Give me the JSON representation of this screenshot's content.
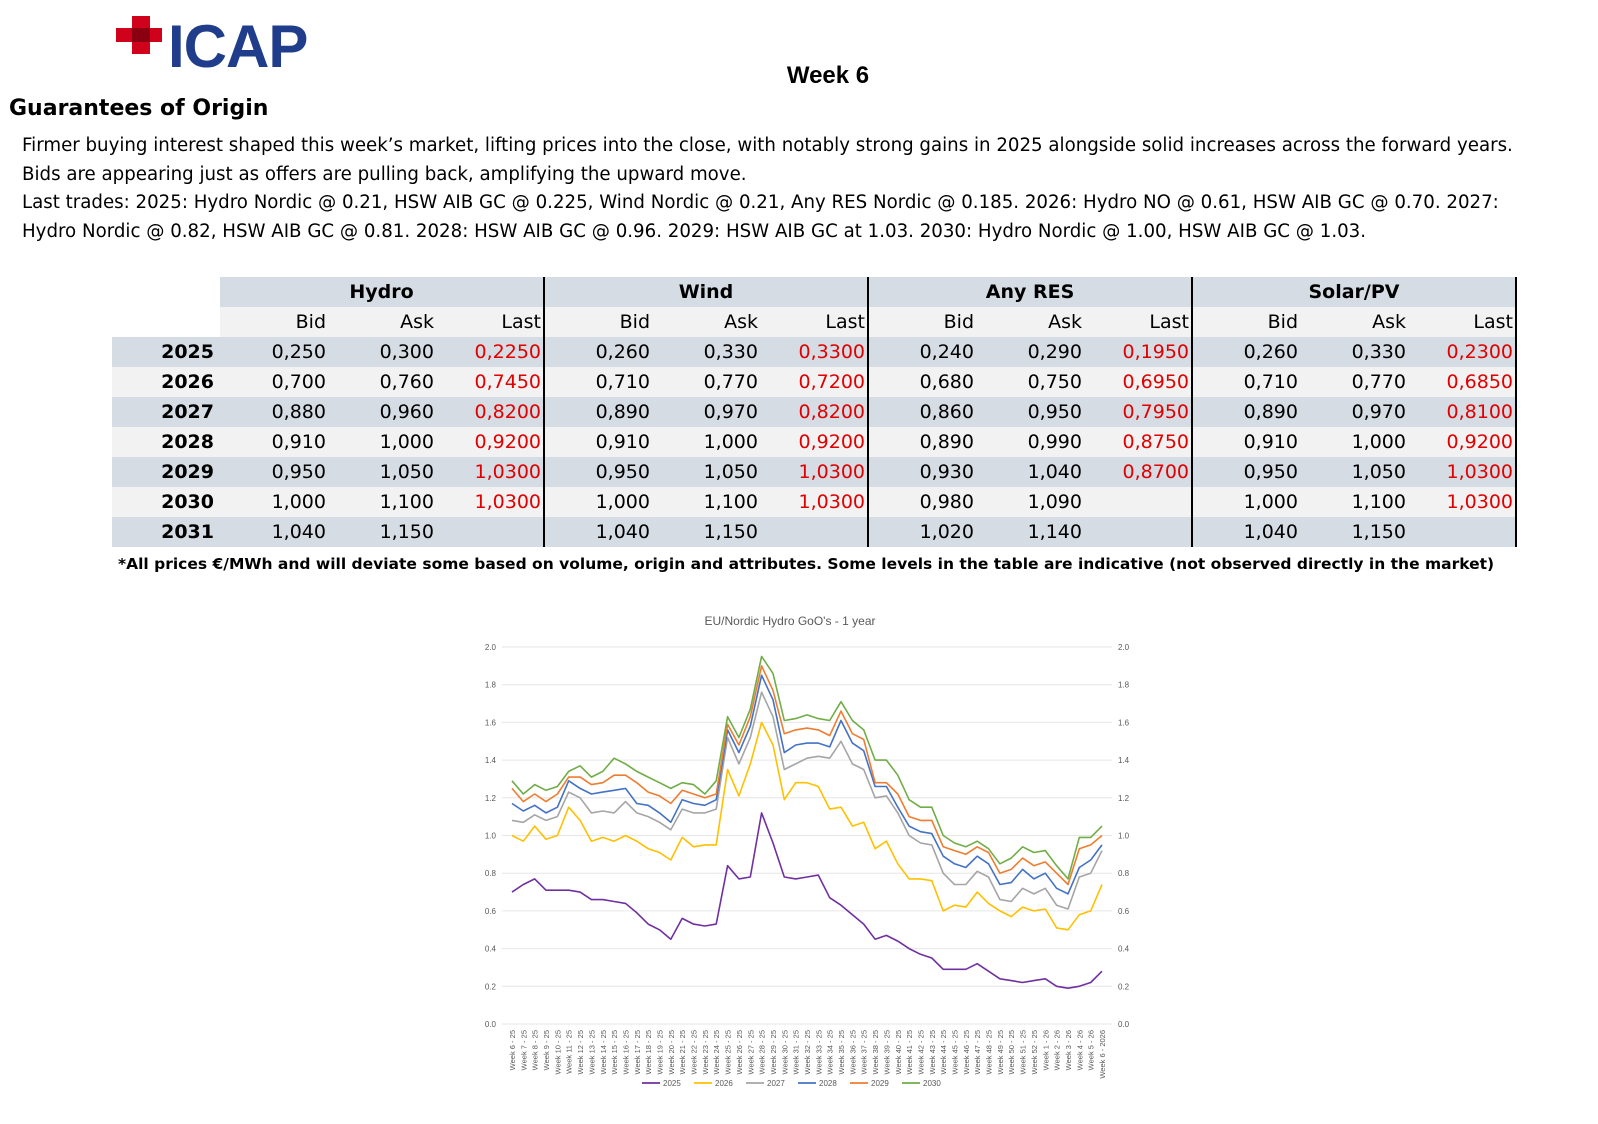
{
  "logo": {
    "text": "ICAP",
    "brand_color": "#1f3d8a",
    "accent_color": "#d0021b"
  },
  "week_title": "Week 6",
  "section_title": "Guarantees of Origin",
  "paragraph_lines": [
    "Firmer buying interest shaped this week’s market, lifting prices into the close, with notably strong gains in 2025 alongside solid increases across the forward years.",
    "Bids are appearing just as offers are pulling back, amplifying the upward move.",
    "Last trades:   2025: Hydro Nordic @ 0.21, HSW AIB GC @ 0.225, Wind Nordic @ 0.21, Any RES Nordic @ 0.185.   2026: Hydro NO @ 0.61, HSW AIB GC @ 0.70.   2027:",
    "Hydro Nordic @ 0.82, HSW AIB GC @ 0.81.   2028: HSW AIB GC @ 0.96.   2029: HSW AIB GC at 1.03.   2030: Hydro Nordic @ 1.00, HSW AIB GC @ 1.03."
  ],
  "table": {
    "groups": [
      "Hydro",
      "Wind",
      "Any RES",
      "Solar/PV"
    ],
    "columns": [
      "Bid",
      "Ask",
      "Last"
    ],
    "rows": [
      {
        "year": "2025",
        "cells": [
          "0,250",
          "0,300",
          "0,2250",
          "0,260",
          "0,330",
          "0,3300",
          "0,240",
          "0,290",
          "0,1950",
          "0,260",
          "0,330",
          "0,2300"
        ]
      },
      {
        "year": "2026",
        "cells": [
          "0,700",
          "0,760",
          "0,7450",
          "0,710",
          "0,770",
          "0,7200",
          "0,680",
          "0,750",
          "0,6950",
          "0,710",
          "0,770",
          "0,6850"
        ]
      },
      {
        "year": "2027",
        "cells": [
          "0,880",
          "0,960",
          "0,8200",
          "0,890",
          "0,970",
          "0,8200",
          "0,860",
          "0,950",
          "0,7950",
          "0,890",
          "0,970",
          "0,8100"
        ]
      },
      {
        "year": "2028",
        "cells": [
          "0,910",
          "1,000",
          "0,9200",
          "0,910",
          "1,000",
          "0,9200",
          "0,890",
          "0,990",
          "0,8750",
          "0,910",
          "1,000",
          "0,9200"
        ]
      },
      {
        "year": "2029",
        "cells": [
          "0,950",
          "1,050",
          "1,0300",
          "0,950",
          "1,050",
          "1,0300",
          "0,930",
          "1,040",
          "0,8700",
          "0,950",
          "1,050",
          "1,0300"
        ]
      },
      {
        "year": "2030",
        "cells": [
          "1,000",
          "1,100",
          "1,0300",
          "1,000",
          "1,100",
          "1,0300",
          "0,980",
          "1,090",
          "",
          "1,000",
          "1,100",
          "1,0300"
        ]
      },
      {
        "year": "2031",
        "cells": [
          "1,040",
          "1,150",
          "",
          "1,040",
          "1,150",
          "",
          "1,020",
          "1,140",
          "",
          "1,040",
          "1,150",
          ""
        ]
      }
    ],
    "last_color": "#e00000",
    "band_color": "#d5dce4"
  },
  "note": "*All prices €/MWh and will deviate some based on volume, origin and attributes. Some levels in the table are indicative (not observed directly in the market)",
  "chart_data": {
    "type": "line",
    "title": "EU/Nordic Hydro GoO's - 1 year",
    "ylim": [
      0,
      2.0
    ],
    "yticks": [
      "0.0",
      "0.2",
      "0.4",
      "0.6",
      "0.8",
      "1.0",
      "1.2",
      "1.4",
      "1.6",
      "1.8",
      "2.0"
    ],
    "x": [
      "Week 6 - 25",
      "Week 7 - 25",
      "Week 8 - 25",
      "Week 9 - 25",
      "Week 10 - 25",
      "Week 11 - 25",
      "Week 12 - 25",
      "Week 13 - 25",
      "Week 14 - 25",
      "Week 15 - 25",
      "Week 16 - 25",
      "Week 17 - 25",
      "Week 18 - 25",
      "Week 19 - 25",
      "Week 20 - 25",
      "Week 21 - 25",
      "Week 22 - 25",
      "Week 23 - 25",
      "Week 24 - 25",
      "Week 25 - 25",
      "Week 26 - 25",
      "Week 27 - 25",
      "Week 28 - 25",
      "Week 29 - 25",
      "Week 30 - 25",
      "Week 31 - 25",
      "Week 32 - 25",
      "Week 33 - 25",
      "Week 34 - 25",
      "Week 35 - 25",
      "Week 36 - 25",
      "Week 37 - 25",
      "Week 38 - 25",
      "Week 39 - 25",
      "Week 40 - 25",
      "Week 41 - 25",
      "Week 42 - 25",
      "Week 43 - 25",
      "Week 44 - 25",
      "Week 45 - 25",
      "Week 46 - 25",
      "Week 47 - 25",
      "Week 48 - 25",
      "Week 49 - 25",
      "Week 50 - 25",
      "Week 51 - 25",
      "Week 52 - 25",
      "Week 1 - 26",
      "Week 2 - 26",
      "Week 3 - 26",
      "Week 4 - 26",
      "Week 5 - 26",
      "Week 6 - 2026"
    ],
    "series": [
      {
        "name": "2025",
        "color": "#7030a0",
        "values": [
          0.7,
          0.74,
          0.77,
          0.71,
          0.71,
          0.71,
          0.7,
          0.66,
          0.66,
          0.65,
          0.64,
          0.59,
          0.53,
          0.5,
          0.45,
          0.56,
          0.53,
          0.52,
          0.53,
          0.84,
          0.77,
          0.78,
          1.12,
          0.96,
          0.78,
          0.77,
          0.78,
          0.79,
          0.67,
          0.63,
          0.58,
          0.53,
          0.45,
          0.47,
          0.44,
          0.4,
          0.37,
          0.35,
          0.29,
          0.29,
          0.29,
          0.32,
          0.28,
          0.24,
          0.23,
          0.22,
          0.23,
          0.24,
          0.2,
          0.19,
          0.2,
          0.22,
          0.28
        ]
      },
      {
        "name": "2026",
        "color": "#ffc000",
        "values": [
          1.0,
          0.97,
          1.05,
          0.98,
          1.0,
          1.15,
          1.08,
          0.97,
          0.99,
          0.97,
          1.0,
          0.97,
          0.93,
          0.91,
          0.87,
          0.99,
          0.94,
          0.95,
          0.95,
          1.35,
          1.21,
          1.38,
          1.6,
          1.48,
          1.19,
          1.28,
          1.28,
          1.26,
          1.14,
          1.15,
          1.05,
          1.07,
          0.93,
          0.97,
          0.85,
          0.77,
          0.77,
          0.76,
          0.6,
          0.63,
          0.62,
          0.7,
          0.64,
          0.6,
          0.57,
          0.62,
          0.6,
          0.61,
          0.51,
          0.5,
          0.58,
          0.6,
          0.74
        ]
      },
      {
        "name": "2027",
        "color": "#a5a5a5",
        "values": [
          1.08,
          1.07,
          1.11,
          1.08,
          1.1,
          1.23,
          1.2,
          1.12,
          1.13,
          1.12,
          1.18,
          1.12,
          1.1,
          1.07,
          1.03,
          1.14,
          1.12,
          1.12,
          1.14,
          1.52,
          1.38,
          1.52,
          1.76,
          1.63,
          1.35,
          1.38,
          1.41,
          1.42,
          1.41,
          1.5,
          1.38,
          1.35,
          1.2,
          1.21,
          1.12,
          1.0,
          0.96,
          0.95,
          0.8,
          0.74,
          0.74,
          0.81,
          0.78,
          0.66,
          0.65,
          0.72,
          0.69,
          0.72,
          0.63,
          0.61,
          0.78,
          0.8,
          0.92
        ]
      },
      {
        "name": "2028",
        "color": "#4472c4",
        "values": [
          1.17,
          1.13,
          1.16,
          1.12,
          1.15,
          1.29,
          1.25,
          1.22,
          1.23,
          1.24,
          1.25,
          1.17,
          1.16,
          1.12,
          1.07,
          1.19,
          1.17,
          1.16,
          1.19,
          1.56,
          1.44,
          1.58,
          1.85,
          1.72,
          1.44,
          1.48,
          1.49,
          1.49,
          1.47,
          1.61,
          1.49,
          1.45,
          1.26,
          1.26,
          1.15,
          1.05,
          1.02,
          1.01,
          0.89,
          0.85,
          0.83,
          0.89,
          0.85,
          0.74,
          0.75,
          0.82,
          0.77,
          0.8,
          0.72,
          0.69,
          0.83,
          0.87,
          0.95
        ]
      },
      {
        "name": "2029",
        "color": "#ed7d31",
        "values": [
          1.25,
          1.18,
          1.22,
          1.18,
          1.22,
          1.31,
          1.31,
          1.27,
          1.28,
          1.32,
          1.32,
          1.28,
          1.23,
          1.21,
          1.17,
          1.24,
          1.22,
          1.2,
          1.22,
          1.59,
          1.48,
          1.63,
          1.9,
          1.77,
          1.54,
          1.56,
          1.57,
          1.56,
          1.53,
          1.66,
          1.54,
          1.51,
          1.28,
          1.28,
          1.22,
          1.1,
          1.08,
          1.08,
          0.94,
          0.92,
          0.9,
          0.94,
          0.91,
          0.8,
          0.82,
          0.88,
          0.84,
          0.86,
          0.8,
          0.74,
          0.93,
          0.95,
          1.0
        ]
      },
      {
        "name": "2030",
        "color": "#70ad47",
        "values": [
          1.29,
          1.22,
          1.27,
          1.24,
          1.26,
          1.34,
          1.37,
          1.31,
          1.34,
          1.41,
          1.38,
          1.34,
          1.31,
          1.28,
          1.25,
          1.28,
          1.27,
          1.22,
          1.29,
          1.63,
          1.52,
          1.67,
          1.95,
          1.86,
          1.61,
          1.62,
          1.64,
          1.62,
          1.61,
          1.71,
          1.61,
          1.56,
          1.4,
          1.4,
          1.32,
          1.19,
          1.15,
          1.15,
          1.0,
          0.96,
          0.94,
          0.97,
          0.93,
          0.85,
          0.88,
          0.94,
          0.91,
          0.92,
          0.84,
          0.77,
          0.99,
          0.99,
          1.05
        ]
      }
    ]
  }
}
